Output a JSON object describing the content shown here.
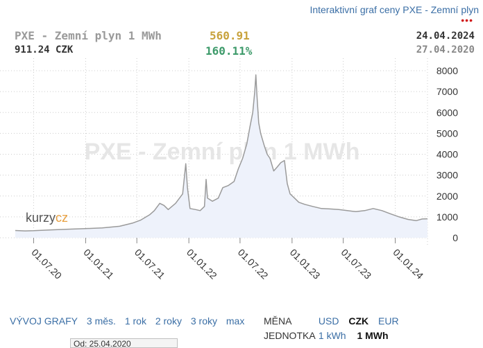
{
  "header": {
    "link": "Interaktivní graf ceny PXE - Zemní plyn",
    "dots": "•••",
    "title": "PXE - Zemní plyn 1 MWh",
    "price_czk": "911.24 CZK",
    "price": "560.91",
    "change": "160.11%",
    "date_end": "24.04.2024",
    "date_start": "27.04.2020"
  },
  "chart_data": {
    "type": "line",
    "title": "PXE - Zemní plyn 1 MWh",
    "watermark": "PXE - Zemní plyn 1 MWh",
    "brand": {
      "part1": "kurzy",
      "part2": "cz"
    },
    "xlabel": "",
    "ylabel": "",
    "ylim": [
      0,
      8000
    ],
    "y_ticks": [
      "0",
      "1000",
      "2000",
      "3000",
      "4000",
      "5000",
      "6000",
      "7000",
      "8000"
    ],
    "x_ticks": [
      "01.07.20",
      "01.01.21",
      "01.07.21",
      "01.01.22",
      "01.07.22",
      "01.01.23",
      "01.07.23",
      "01.01.24"
    ],
    "x_tick_dates": [
      "2020-07-01",
      "2021-01-01",
      "2021-07-01",
      "2022-01-01",
      "2022-07-01",
      "2023-01-01",
      "2023-07-01",
      "2024-01-01"
    ],
    "x_range": [
      "2020-04-27",
      "2024-04-24"
    ],
    "grid": true,
    "colors": {
      "line": "#9a9a9a",
      "area": "#eef2fb",
      "grid": "#cccccc"
    },
    "series": [
      {
        "name": "PXE - Zemní plyn 1 MWh",
        "points": [
          [
            "2020-04-27",
            350
          ],
          [
            "2020-06-01",
            330
          ],
          [
            "2020-07-01",
            340
          ],
          [
            "2020-09-01",
            380
          ],
          [
            "2020-11-01",
            410
          ],
          [
            "2021-01-01",
            440
          ],
          [
            "2021-03-01",
            470
          ],
          [
            "2021-05-01",
            550
          ],
          [
            "2021-06-15",
            700
          ],
          [
            "2021-07-15",
            850
          ],
          [
            "2021-08-15",
            1100
          ],
          [
            "2021-09-01",
            1300
          ],
          [
            "2021-09-20",
            1650
          ],
          [
            "2021-10-05",
            1550
          ],
          [
            "2021-10-20",
            1350
          ],
          [
            "2021-11-15",
            1650
          ],
          [
            "2021-12-10",
            2100
          ],
          [
            "2021-12-21",
            3550
          ],
          [
            "2021-12-27",
            2400
          ],
          [
            "2022-01-05",
            1400
          ],
          [
            "2022-01-25",
            1350
          ],
          [
            "2022-02-10",
            1300
          ],
          [
            "2022-02-25",
            1500
          ],
          [
            "2022-03-03",
            2800
          ],
          [
            "2022-03-08",
            1900
          ],
          [
            "2022-03-25",
            1750
          ],
          [
            "2022-04-15",
            1900
          ],
          [
            "2022-05-01",
            2400
          ],
          [
            "2022-05-20",
            2500
          ],
          [
            "2022-06-10",
            2700
          ],
          [
            "2022-06-25",
            3300
          ],
          [
            "2022-07-10",
            3800
          ],
          [
            "2022-07-25",
            4500
          ],
          [
            "2022-08-05",
            5300
          ],
          [
            "2022-08-15",
            6000
          ],
          [
            "2022-08-22",
            7000
          ],
          [
            "2022-08-26",
            7800
          ],
          [
            "2022-08-30",
            6800
          ],
          [
            "2022-09-05",
            5500
          ],
          [
            "2022-09-12",
            5000
          ],
          [
            "2022-09-25",
            4400
          ],
          [
            "2022-10-05",
            4000
          ],
          [
            "2022-10-15",
            3800
          ],
          [
            "2022-10-28",
            3200
          ],
          [
            "2022-11-10",
            3400
          ],
          [
            "2022-11-22",
            3600
          ],
          [
            "2022-12-05",
            3700
          ],
          [
            "2022-12-15",
            2600
          ],
          [
            "2022-12-25",
            2100
          ],
          [
            "2023-01-10",
            1900
          ],
          [
            "2023-01-25",
            1700
          ],
          [
            "2023-02-15",
            1600
          ],
          [
            "2023-03-15",
            1500
          ],
          [
            "2023-04-15",
            1400
          ],
          [
            "2023-05-15",
            1380
          ],
          [
            "2023-06-15",
            1350
          ],
          [
            "2023-07-15",
            1300
          ],
          [
            "2023-08-15",
            1250
          ],
          [
            "2023-09-15",
            1300
          ],
          [
            "2023-10-15",
            1400
          ],
          [
            "2023-11-15",
            1300
          ],
          [
            "2023-12-15",
            1150
          ],
          [
            "2024-01-15",
            1000
          ],
          [
            "2024-02-15",
            880
          ],
          [
            "2024-03-15",
            820
          ],
          [
            "2024-04-05",
            900
          ],
          [
            "2024-04-24",
            911
          ]
        ]
      }
    ]
  },
  "controls": {
    "vyvoj_label": "VÝVOJ GRAFY",
    "ranges": [
      "3 měs.",
      "1 rok",
      "2 roky",
      "3 roky",
      "max"
    ],
    "mena_label": "MĚNA",
    "currencies": [
      "USD",
      "CZK",
      "EUR"
    ],
    "selected_currency": "CZK",
    "jednotka_label": "JEDNOTKA",
    "units": [
      "1 kWh",
      "1 MWh"
    ],
    "selected_unit": "1 MWh",
    "date_from": "Od: 25.04.2020"
  }
}
